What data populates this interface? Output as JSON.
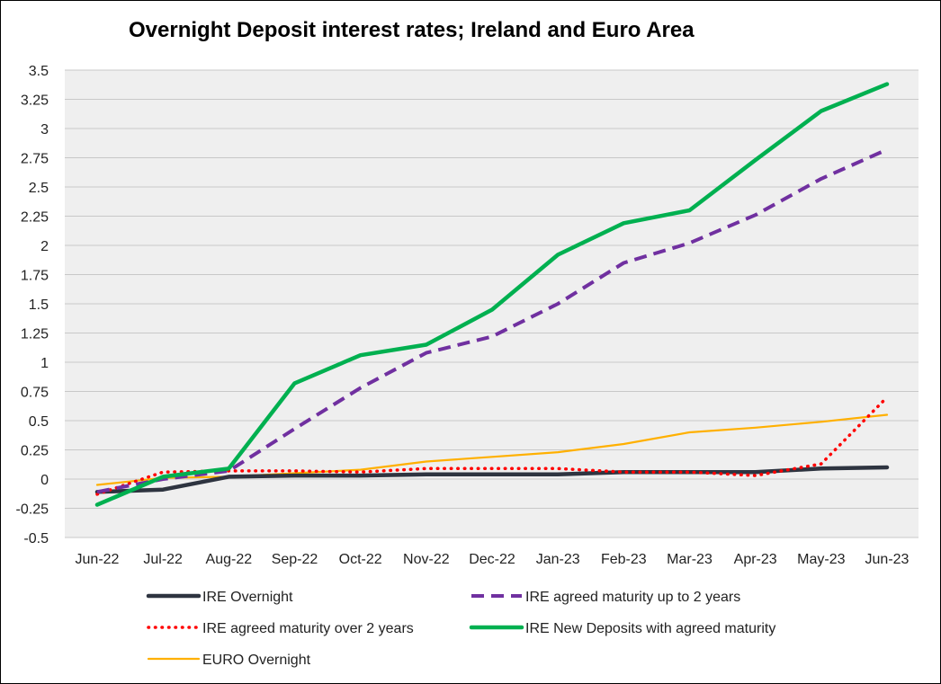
{
  "chart_data": {
    "type": "line",
    "title": "Overnight Deposit interest rates; Ireland and Euro Area",
    "xlabel": "",
    "ylabel": "",
    "categories": [
      "Jun-22",
      "Jul-22",
      "Aug-22",
      "Sep-22",
      "Oct-22",
      "Nov-22",
      "Dec-22",
      "Jan-23",
      "Feb-23",
      "Mar-23",
      "Apr-23",
      "May-23",
      "Jun-23"
    ],
    "ylim": [
      -0.5,
      3.5
    ],
    "yticks": [
      "3.5",
      "3.25",
      "3",
      "2.75",
      "2.5",
      "2.25",
      "2",
      "1.75",
      "1.5",
      "1.25",
      "1",
      "0.75",
      "0.5",
      "0.25",
      "0",
      "-0.25",
      "-0.5"
    ],
    "grid": "horizontal",
    "legend_position": "bottom",
    "series": [
      {
        "name": "IRE Overnight",
        "color": "#2e3440",
        "style": "solid-thick",
        "values": [
          -0.11,
          -0.09,
          0.02,
          0.03,
          0.03,
          0.04,
          0.04,
          0.04,
          0.06,
          0.06,
          0.06,
          0.09,
          0.1
        ]
      },
      {
        "name": "IRE agreed maturity up to 2 years",
        "color": "#7030a0",
        "style": "dashed",
        "values": [
          -0.11,
          0.0,
          0.07,
          0.43,
          0.78,
          1.08,
          1.22,
          1.5,
          1.85,
          2.02,
          2.26,
          2.57,
          2.82
        ]
      },
      {
        "name": "IRE agreed maturity over 2 years",
        "color": "#ff0000",
        "style": "dotted",
        "values": [
          -0.13,
          0.06,
          0.07,
          0.07,
          0.06,
          0.09,
          0.09,
          0.09,
          0.06,
          0.06,
          0.03,
          0.13,
          0.7
        ]
      },
      {
        "name": "IRE New Deposits with agreed maturity",
        "color": "#00b050",
        "style": "solid-thick",
        "values": [
          -0.22,
          0.02,
          0.09,
          0.82,
          1.06,
          1.15,
          1.45,
          1.92,
          2.19,
          2.3,
          2.73,
          3.15,
          3.38
        ]
      },
      {
        "name": "EURO Overnight",
        "color": "#ffb000",
        "style": "solid-thin",
        "values": [
          -0.05,
          0.01,
          0.02,
          0.05,
          0.08,
          0.15,
          0.19,
          0.23,
          0.3,
          0.4,
          0.44,
          0.49,
          0.55
        ]
      }
    ]
  }
}
